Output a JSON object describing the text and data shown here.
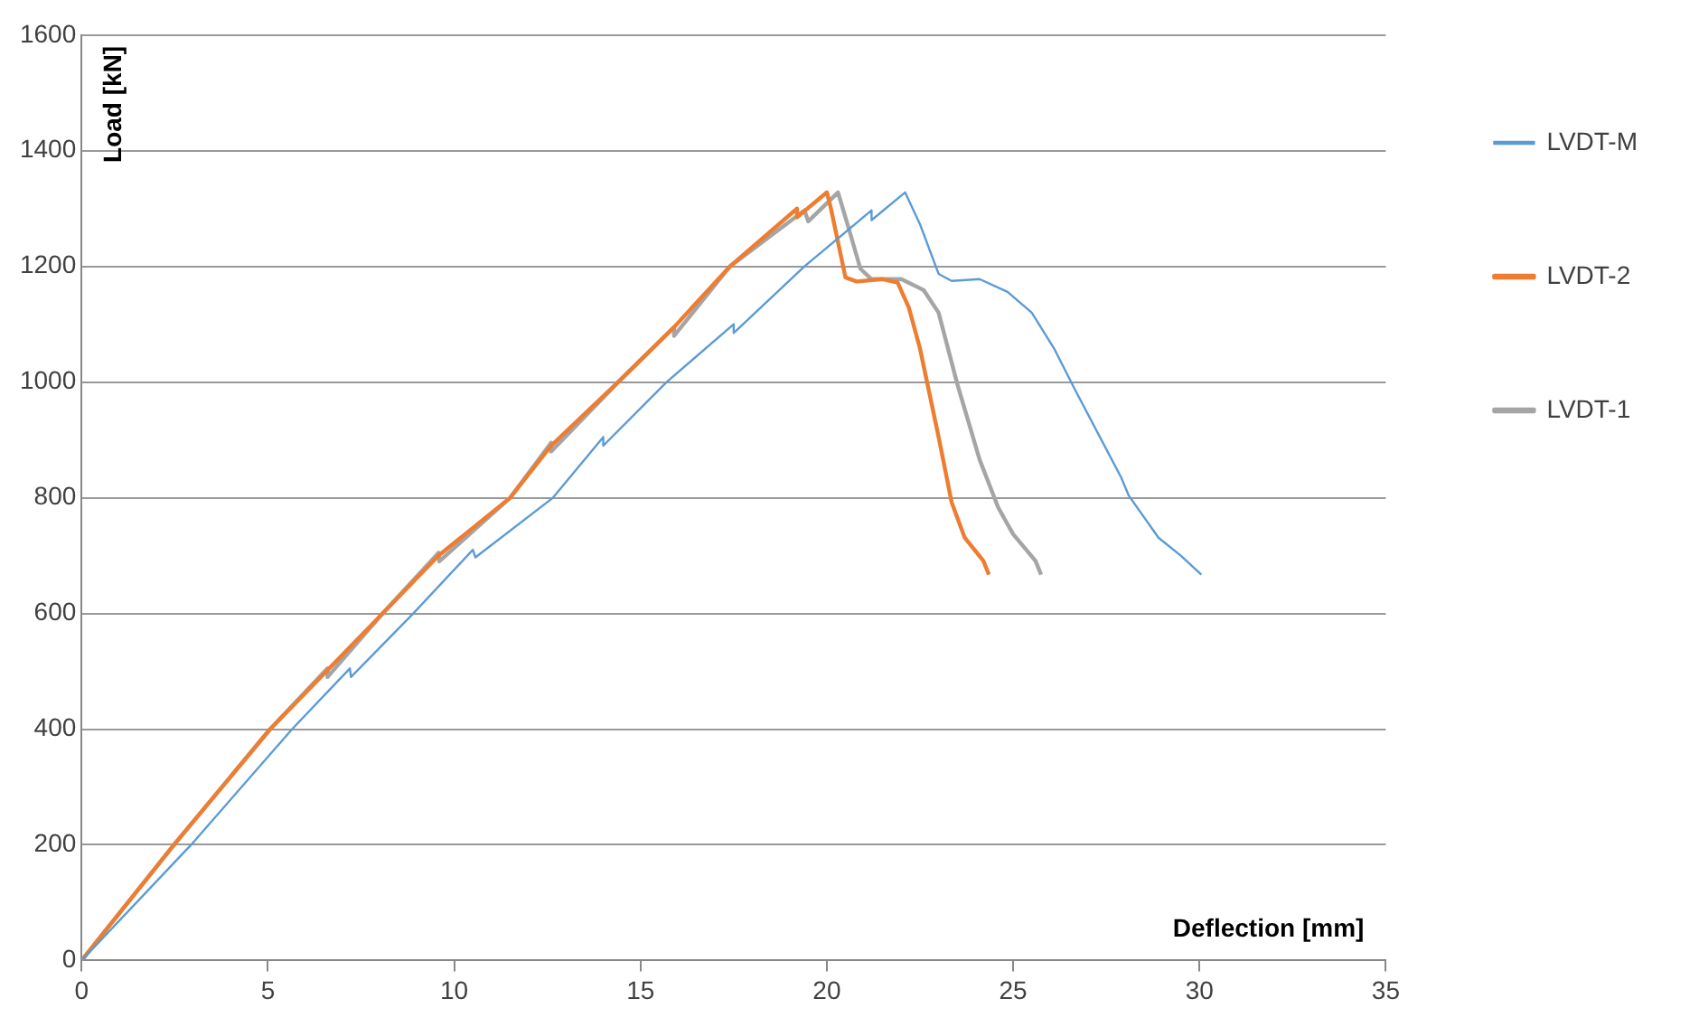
{
  "chart_data": {
    "type": "line",
    "xlabel": "Deflection [mm]",
    "ylabel": "Load [kN]",
    "xlim": [
      0,
      35
    ],
    "xticks": [
      0,
      5,
      10,
      15,
      20,
      25,
      30,
      35
    ],
    "ylim": [
      0,
      1600
    ],
    "yticks": [
      0,
      200,
      400,
      600,
      800,
      1000,
      1200,
      1400,
      1600
    ],
    "grid": "y",
    "legend": "right",
    "marker": "none",
    "line_style": "solid",
    "series": [
      {
        "name": "LVDT-M",
        "color": "#5b9bd5",
        "x": [
          0,
          2.94,
          5.65,
          7.2,
          7.23,
          8.9,
          10.5,
          10.57,
          12.65,
          14.0,
          14.0,
          15.7,
          17.5,
          17.5,
          19.4,
          21.2,
          21.2,
          22.1,
          22.5,
          23.0,
          23.35,
          24.1,
          24.85,
          25.5,
          26.1,
          26.65,
          27.9,
          28.1,
          28.9,
          29.5,
          30.05
        ],
        "values": [
          0,
          200,
          400,
          505,
          490,
          600,
          710,
          697,
          800,
          905,
          890,
          1000,
          1100,
          1085,
          1200,
          1297,
          1280,
          1328,
          1273,
          1187,
          1175,
          1178,
          1156,
          1120,
          1058,
          988,
          835,
          804,
          731,
          700,
          667
        ]
      },
      {
        "name": "LVDT-2",
        "color": "#ed7d31",
        "x": [
          0,
          2.48,
          5.06,
          8.08,
          9.58,
          11.5,
          12.6,
          14.4,
          15.9,
          17.4,
          19.2,
          19.2,
          20.0,
          20.1,
          20.3,
          20.5,
          20.8,
          21.5,
          21.9,
          22.2,
          22.5,
          23.0,
          23.35,
          23.7,
          24.2,
          24.35
        ],
        "values": [
          0,
          200,
          400,
          600,
          700,
          800,
          890,
          1000,
          1095,
          1200,
          1300,
          1285,
          1328,
          1303,
          1242,
          1181,
          1174,
          1178,
          1172,
          1129,
          1058,
          905,
          792,
          731,
          691,
          667
        ]
      },
      {
        "name": "LVDT-1",
        "color": "#a5a5a5",
        "x": [
          0,
          2.48,
          5.06,
          6.6,
          6.6,
          8.08,
          9.58,
          9.6,
          11.5,
          12.6,
          12.6,
          14.4,
          15.9,
          15.9,
          17.4,
          19.4,
          19.5,
          20.3,
          20.6,
          20.9,
          21.2,
          22.0,
          22.6,
          23.0,
          23.5,
          24.1,
          24.6,
          25.0,
          25.6,
          25.75
        ],
        "values": [
          0,
          200,
          400,
          505,
          490,
          600,
          705,
          690,
          800,
          895,
          880,
          1000,
          1095,
          1080,
          1200,
          1297,
          1278,
          1328,
          1263,
          1196,
          1178,
          1178,
          1159,
          1120,
          997,
          866,
          783,
          737,
          691,
          667
        ]
      }
    ]
  }
}
